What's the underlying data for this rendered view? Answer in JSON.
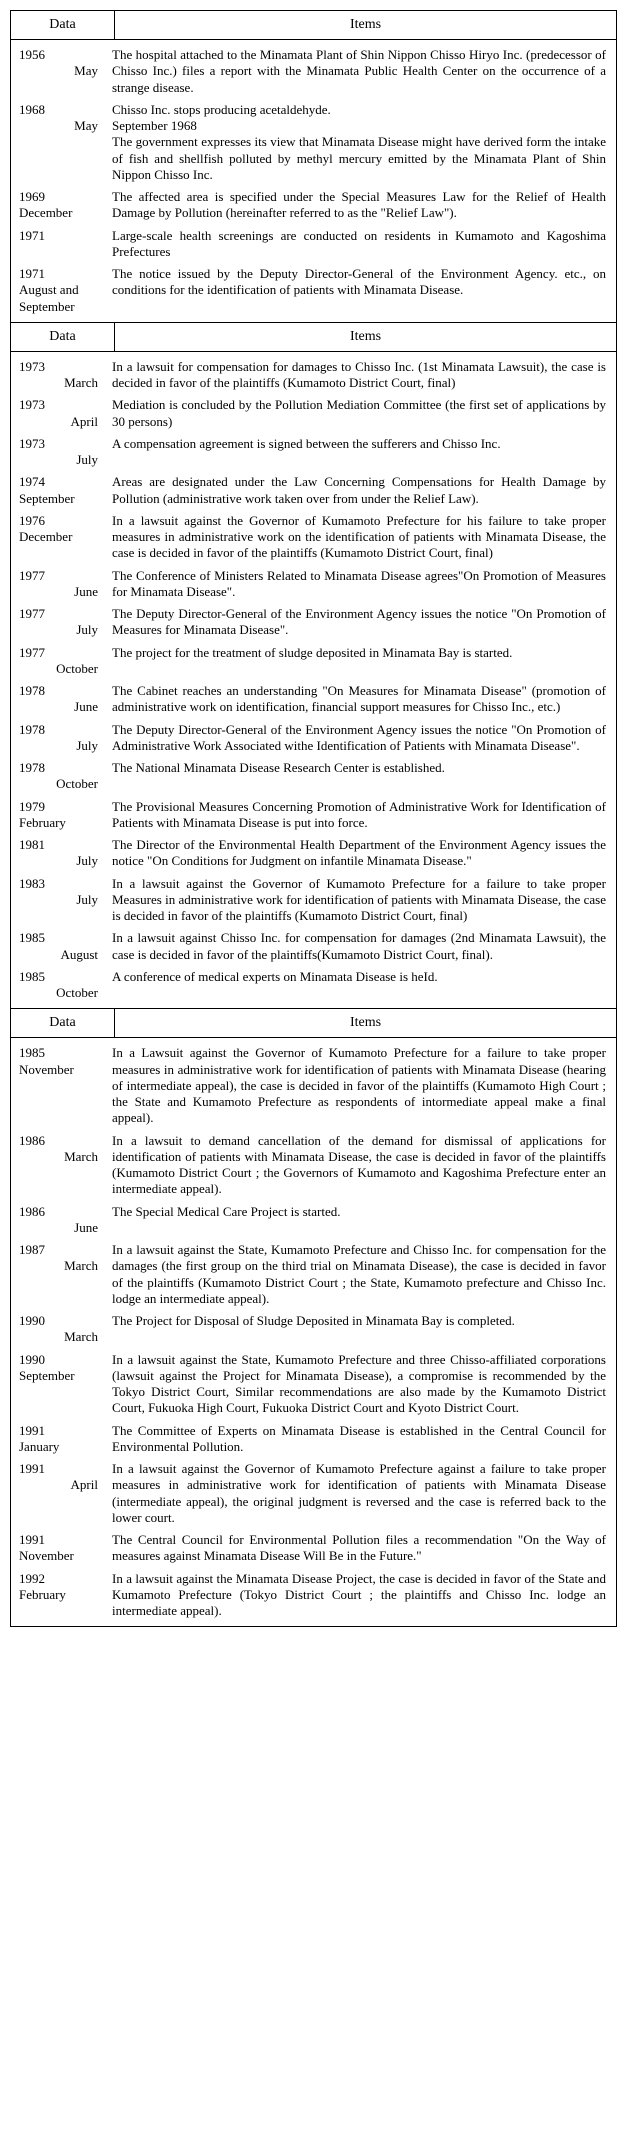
{
  "header_date": "Data",
  "header_items": "Items",
  "sections": [
    {
      "rows": [
        {
          "year": "1956",
          "month": "May",
          "month_align": "right",
          "item": "The hospital attached to the Minamata Plant of Shin Nippon Chisso Hiryo Inc. (predecessor of Chisso Inc.) files a report with the Minamata Public Health Center on the occurrence of a strange disease."
        },
        {
          "year": "1968",
          "month": "May",
          "month_align": "right",
          "item": "Chisso Inc. stops producing acetaldehyde.\nSeptember 1968\nThe government expresses its view that Minamata Disease might have derived form the intake of fish and shellfish polluted by methyl mercury emitted by the Minamata Plant of Shin Nippon Chisso Inc."
        },
        {
          "year": "1969",
          "month": "December",
          "month_align": "left",
          "item": "The affected area is specified under the Special Measures Law for the Relief of Health Damage by Pollution (hereinafter referred to as the \"Relief Law\")."
        },
        {
          "year": "1971",
          "month": "",
          "month_align": "left",
          "item": "Large-scale health screenings are conducted on residents in Kumamoto and Kagoshima Prefectures"
        },
        {
          "year": "1971",
          "month": "August and September",
          "month_align": "left",
          "item": "The notice issued by the Deputy Director-General of the Environment Agency. etc., on conditions for the identification of patients with Minamata Disease."
        }
      ]
    },
    {
      "rows": [
        {
          "year": "1973",
          "month": "March",
          "month_align": "right",
          "item": "In a lawsuit for compensation for damages to Chisso Inc. (1st Minamata Lawsuit), the case is decided in favor of the plaintiffs (Kumamoto District Court, final)"
        },
        {
          "year": "1973",
          "month": "April",
          "month_align": "right",
          "item": "Mediation is concluded by the Pollution Mediation Committee (the first set of applications by 30 persons)"
        },
        {
          "year": "1973",
          "month": "July",
          "month_align": "right",
          "item": "A compensation agreement is signed between the sufferers and Chisso Inc."
        },
        {
          "year": "1974",
          "month": "September",
          "month_align": "left",
          "item": "Areas are designated under the Law Concerning Compensations for Health Damage by Pollution (administrative work taken over from under the Relief Law)."
        },
        {
          "year": "1976",
          "month": "December",
          "month_align": "left",
          "item": "In a lawsuit against the Governor of Kumamoto Prefecture for his failure to take proper measures in administrative work on the identification of patients with Minamata Disease, the case is decided in favor of the plaintiffs (Kumamoto District Court, final)"
        },
        {
          "year": "1977",
          "month": "June",
          "month_align": "right",
          "item": "The Conference of Ministers Related to Minamata Disease agrees\"On Promotion of Measures for Minamata Disease\"."
        },
        {
          "year": "1977",
          "month": "July",
          "month_align": "right",
          "item": "The Deputy Director-General of the Environment Agency issues the notice \"On Promotion of Measures for Minamata Disease\"."
        },
        {
          "year": "1977",
          "month": "October",
          "month_align": "right",
          "item": "The project for the treatment of sludge deposited in Minamata Bay is started."
        },
        {
          "year": "1978",
          "month": "June",
          "month_align": "right",
          "item": "The Cabinet reaches an understanding \"On Measures for Minamata Disease\" (promotion of administrative work on identification, financial support measures for Chisso Inc., etc.)"
        },
        {
          "year": "1978",
          "month": "July",
          "month_align": "right",
          "item": "The Deputy Director-General of the Environment Agency issues the notice \"On Promotion of Administrative Work Associated withe Identification of Patients with Minamata Disease\"."
        },
        {
          "year": "1978",
          "month": "October",
          "month_align": "right",
          "item": "The National Minamata Disease Research Center is established."
        },
        {
          "year": "1979",
          "month": "February",
          "month_align": "left",
          "item": "The Provisional Measures Concerning Promotion of Administrative Work for Identification of Patients with Minamata Disease is put into force."
        },
        {
          "year": "1981",
          "month": "July",
          "month_align": "right",
          "item": "The Director of the Environmental Health Department of the Environment Agency issues the notice \"On Conditions for Judgment on infantile Minamata Disease.\""
        },
        {
          "year": "1983",
          "month": "July",
          "month_align": "right",
          "item": "In a lawsuit against the Governor of Kumamoto Prefecture for a failure to take proper Measures in administrative work for identification of patients with Minamata Disease, the case is decided in favor of the plaintiffs (Kumamoto District Court, final)"
        },
        {
          "year": "1985",
          "month": "August",
          "month_align": "right",
          "item": "In a lawsuit against Chisso Inc. for compensation for damages (2nd Minamata Lawsuit), the case is decided in favor of the plaintiffs(Kumamoto District Court, final)."
        },
        {
          "year": "1985",
          "month": "October",
          "month_align": "right",
          "item": "A conference of medical experts on Minamata Disease is heId."
        }
      ]
    },
    {
      "rows": [
        {
          "year": "1985",
          "month": "November",
          "month_align": "left",
          "item": "In a Lawsuit against the Governor of Kumamoto Prefecture for a failure to take proper measures in administrative work for identification of patients with Minamata Disease (hearing of intermediate appeal), the case is decided in favor of the plaintiffs (Kumamoto High Court ; the State and Kumamoto Prefecture as respondents of intormediate appeal make a final appeal)."
        },
        {
          "year": "1986",
          "month": "March",
          "month_align": "right",
          "item": "In a lawsuit to demand cancellation of the demand for dismissal of applications for identification of patients with Minamata Disease, the case is decided in favor of the plaintiffs (Kumamoto District Court ; the Governors of Kumamoto and Kagoshima Prefecture enter an intermediate appeal)."
        },
        {
          "year": "1986",
          "month": "June",
          "month_align": "right",
          "item": "The Special Medical Care Project is started."
        },
        {
          "year": "1987",
          "month": "March",
          "month_align": "right",
          "item": "In a lawsuit against the State, Kumamoto Prefecture and Chisso Inc. for compensation for the damages (the first group on the third trial on Minamata Disease), the case is decided in favor of the plaintiffs (Kumamoto District Court ; the State, Kumamoto prefecture and Chisso Inc. lodge an intermediate appeal)."
        },
        {
          "year": "1990",
          "month": "March",
          "month_align": "right",
          "item": "The Project for Disposal of Sludge Deposited in Minamata Bay is completed."
        },
        {
          "year": "1990",
          "month": "September",
          "month_align": "left",
          "item": "In a lawsuit against the State, Kumamoto Prefecture and three Chisso-affiliated corporations (lawsuit against the Project for Minamata Disease), a compromise is recommended by the Tokyo District Court, Similar recommendations are also made by the Kumamoto District Court, Fukuoka High Court, Fukuoka District Court and Kyoto District Court."
        },
        {
          "year": "1991",
          "month": "January",
          "month_align": "left",
          "item": "The Committee of Experts on Minamata Disease is established in the Central Council for Environmental Pollution."
        },
        {
          "year": "1991",
          "month": "April",
          "month_align": "right",
          "item": "In a lawsuit against the Governor of Kumamoto Prefecture against a failure to take proper measures in administrative work for identification of patients with Minamata Disease (intermediate appeal), the original judgment is reversed and the case is referred back to the lower court."
        },
        {
          "year": "1991",
          "month": "November",
          "month_align": "left",
          "item": "The Central Council for Environmental Pollution files a recommendation \"On the Way of measures against Minamata Disease Will Be in the Future.\""
        },
        {
          "year": "1992",
          "month": "February",
          "month_align": "left",
          "item": "In a lawsuit against the Minamata Disease Project, the case is decided in favor of the State and Kumamoto Prefecture (Tokyo District Court ; the plaintiffs and Chisso Inc. lodge an intermediate appeal)."
        }
      ]
    }
  ]
}
